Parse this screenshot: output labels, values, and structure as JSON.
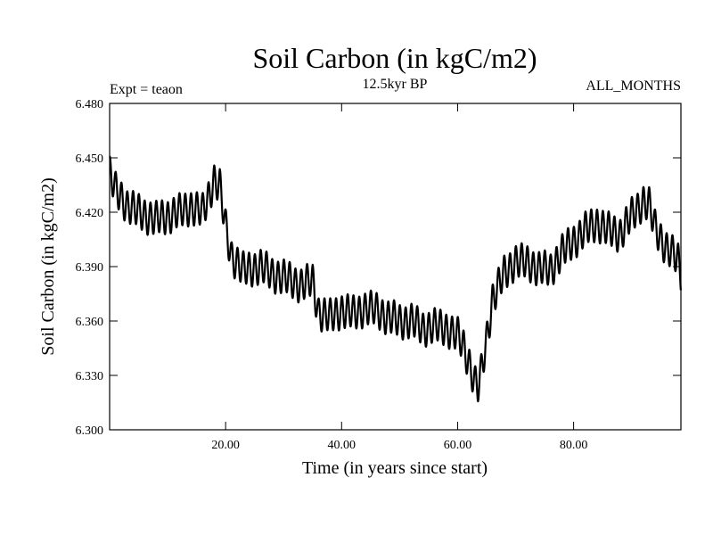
{
  "chart_data": {
    "type": "line",
    "title": "Soil Carbon (in kgC/m2)",
    "subtitle": "12.5kyr BP",
    "left_label": "Expt = teaon",
    "right_label": "ALL_MONTHS",
    "xlabel": "Time (in years since start)",
    "ylabel": "Soil Carbon (in kgC/m2)",
    "xlim": [
      0.0,
      98.5
    ],
    "ylim": [
      6.3,
      6.48
    ],
    "xticks": [
      "20.00",
      "40.00",
      "60.00",
      "80.00"
    ],
    "xtick_values": [
      20,
      40,
      60,
      80
    ],
    "yticks": [
      "6.300",
      "6.330",
      "6.360",
      "6.390",
      "6.420",
      "6.450",
      "6.480"
    ],
    "ytick_values": [
      6.3,
      6.33,
      6.36,
      6.39,
      6.42,
      6.45,
      6.48
    ],
    "grid": false,
    "series": [
      {
        "trend_x": [
          0,
          1,
          3,
          5,
          8,
          10,
          12,
          14,
          16,
          17,
          18,
          19,
          20,
          21,
          23,
          26,
          28,
          30,
          33,
          35,
          36,
          38,
          40,
          42,
          44,
          46,
          48,
          50,
          52,
          54,
          56,
          58,
          60,
          61,
          62,
          63,
          63.5,
          64,
          65,
          66,
          68,
          70,
          72,
          74,
          76,
          78,
          80,
          82,
          84,
          86,
          88,
          90,
          92,
          93,
          94,
          96,
          98,
          98.5
        ],
        "trend_y": [
          6.442,
          6.432,
          6.424,
          6.42,
          6.416,
          6.418,
          6.42,
          6.423,
          6.42,
          6.428,
          6.438,
          6.434,
          6.412,
          6.396,
          6.388,
          6.39,
          6.386,
          6.384,
          6.38,
          6.382,
          6.365,
          6.362,
          6.366,
          6.364,
          6.367,
          6.366,
          6.362,
          6.36,
          6.36,
          6.356,
          6.357,
          6.356,
          6.352,
          6.346,
          6.337,
          6.326,
          6.323,
          6.33,
          6.35,
          6.372,
          6.386,
          6.393,
          6.392,
          6.389,
          6.388,
          6.398,
          6.404,
          6.41,
          6.414,
          6.41,
          6.408,
          6.418,
          6.426,
          6.424,
          6.412,
          6.4,
          6.394,
          6.386
        ],
        "amplitude": 0.009,
        "period": 1.0
      }
    ]
  }
}
